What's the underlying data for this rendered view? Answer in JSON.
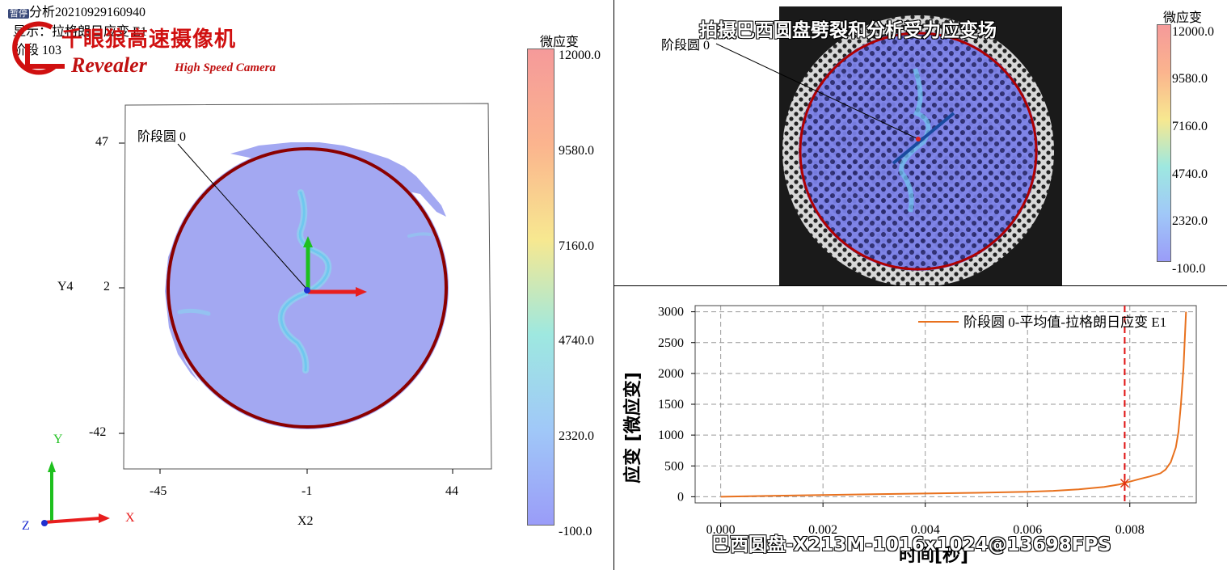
{
  "status": {
    "paused_badge": "暂停",
    "analysis_line": "分析20210929160940",
    "display_line": "显示：拉格朗日应变 E1",
    "stage_line": "阶段 103"
  },
  "logo": {
    "cn_text": "千眼狼高速摄像机",
    "en_text": "Revealer",
    "en_sub": "High Speed Camera"
  },
  "left_view": {
    "stage_circle_label": "阶段圆 0",
    "x_axis_title": "X2",
    "y_axis_title": "Y4",
    "x_ticks": [
      "-45",
      "-1",
      "44"
    ],
    "y_ticks": [
      "47",
      "2",
      "-42"
    ],
    "triad_labels": {
      "x": "X",
      "y": "Y",
      "z": "Z"
    },
    "colorbar": {
      "title": "微应变",
      "ticks": [
        "12000.0",
        "9580.0",
        "7160.0",
        "4740.0",
        "2320.0",
        "-100.0"
      ]
    }
  },
  "camera_view": {
    "overlay_title": "拍摄巴西圆盘劈裂和分析受力应变场",
    "stage_circle_label": "阶段圆 0",
    "colorbar": {
      "title": "微应变",
      "ticks": [
        "12000.0",
        "9580.0",
        "7160.0",
        "4740.0",
        "2320.0",
        "-100.0"
      ]
    }
  },
  "chart_panel": {
    "overlay_caption": "巴西圆盘-X213M-1016x1024@13698FPS"
  },
  "colors": {
    "disk_fill": "#a3a8f2",
    "circle_stroke": "#8b0000",
    "curve": "#e8711e",
    "marker": "#e03010",
    "logo_red": "#d01010"
  },
  "chart_data": {
    "type": "line",
    "title": "",
    "xlabel": "时间[秒]",
    "ylabel": "应变 [微应变]",
    "xlim": [
      -0.0005,
      0.0093
    ],
    "ylim": [
      -100,
      3100
    ],
    "xticks": [
      0.0,
      0.002,
      0.004,
      0.006,
      0.008
    ],
    "xtick_labels": [
      "0.000",
      "0.002",
      "0.004",
      "0.006",
      "0.008"
    ],
    "yticks": [
      0,
      500,
      1000,
      1500,
      2000,
      2500,
      3000
    ],
    "ytick_labels": [
      "0",
      "500",
      "1000",
      "1500",
      "2000",
      "2500",
      "3000"
    ],
    "grid": true,
    "legend_position": "top-right",
    "series": [
      {
        "name": "阶段圆 0-平均值-拉格朗日应变 E1",
        "x": [
          0.0,
          0.001,
          0.002,
          0.003,
          0.004,
          0.005,
          0.006,
          0.0065,
          0.007,
          0.0075,
          0.0078,
          0.008,
          0.0082,
          0.0084,
          0.0086,
          0.0087,
          0.0088,
          0.0089,
          0.00895,
          0.009,
          0.00905,
          0.0091
        ],
        "y": [
          0,
          15,
          28,
          40,
          52,
          64,
          80,
          95,
          120,
          160,
          200,
          245,
          290,
          330,
          380,
          440,
          560,
          800,
          1050,
          1500,
          2100,
          3000
        ]
      }
    ],
    "current_time_marker": {
      "x": 0.0079,
      "y": 220
    }
  }
}
